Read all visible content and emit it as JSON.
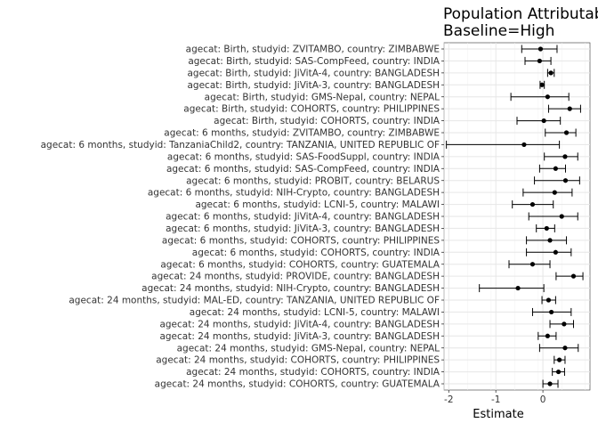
{
  "chart_data": {
    "type": "forest",
    "title_lines": [
      "Population Attributable",
      "Baseline=High"
    ],
    "xlabel": "Estimate",
    "xlim": [
      -2.1,
      1.0
    ],
    "xticks": [
      -2,
      -1,
      0
    ],
    "xtick_labels": [
      "-2",
      "-1",
      "0"
    ],
    "grid": true,
    "rows": [
      {
        "label": "agecat: Birth, studyid: ZVITAMBO, country: ZIMBABWE",
        "estimate": -0.05,
        "lower": -0.45,
        "upper": 0.3
      },
      {
        "label": "agecat: Birth, studyid: SAS-CompFeed, country: INDIA",
        "estimate": -0.07,
        "lower": -0.38,
        "upper": 0.17
      },
      {
        "label": "agecat: Birth, studyid: JiVitA-4, country: BANGLADESH",
        "estimate": 0.17,
        "lower": 0.1,
        "upper": 0.24
      },
      {
        "label": "agecat: Birth, studyid: JiVitA-3, country: BANGLADESH",
        "estimate": -0.02,
        "lower": -0.06,
        "upper": 0.03
      },
      {
        "label": "agecat: Birth, studyid: GMS-Nepal, country: NEPAL",
        "estimate": 0.1,
        "lower": -0.68,
        "upper": 0.55
      },
      {
        "label": "agecat: Birth, studyid: COHORTS, country: PHILIPPINES",
        "estimate": 0.57,
        "lower": 0.12,
        "upper": 0.8
      },
      {
        "label": "agecat: Birth, studyid: COHORTS, country: INDIA",
        "estimate": 0.02,
        "lower": -0.55,
        "upper": 0.37
      },
      {
        "label": "agecat: 6 months, studyid: ZVITAMBO, country: ZIMBABWE",
        "estimate": 0.5,
        "lower": 0.05,
        "upper": 0.7
      },
      {
        "label": "agecat: 6 months, studyid: TanzaniaChild2, country: TANZANIA, UNITED REPUBLIC OF",
        "estimate": -0.4,
        "lower": -2.05,
        "upper": 0.35
      },
      {
        "label": "agecat: 6 months, studyid: SAS-FoodSuppl, country: INDIA",
        "estimate": 0.47,
        "lower": 0.03,
        "upper": 0.74
      },
      {
        "label": "agecat: 6 months, studyid: SAS-CompFeed, country: INDIA",
        "estimate": 0.27,
        "lower": -0.07,
        "upper": 0.48
      },
      {
        "label": "agecat: 6 months, studyid: PROBIT, country: BELARUS",
        "estimate": 0.48,
        "lower": -0.18,
        "upper": 0.78
      },
      {
        "label": "agecat: 6 months, studyid: NIH-Crypto, country: BANGLADESH",
        "estimate": 0.25,
        "lower": -0.42,
        "upper": 0.62
      },
      {
        "label": "agecat: 6 months, studyid: LCNI-5, country: MALAWI",
        "estimate": -0.22,
        "lower": -0.65,
        "upper": 0.22
      },
      {
        "label": "agecat: 6 months, studyid: JiVitA-4, country: BANGLADESH",
        "estimate": 0.4,
        "lower": -0.3,
        "upper": 0.74
      },
      {
        "label": "agecat: 6 months, studyid: JiVitA-3, country: BANGLADESH",
        "estimate": 0.08,
        "lower": -0.14,
        "upper": 0.25
      },
      {
        "label": "agecat: 6 months, studyid: COHORTS, country: PHILIPPINES",
        "estimate": 0.15,
        "lower": -0.35,
        "upper": 0.5
      },
      {
        "label": "agecat: 6 months, studyid: COHORTS, country: INDIA",
        "estimate": 0.27,
        "lower": -0.35,
        "upper": 0.6
      },
      {
        "label": "agecat: 6 months, studyid: COHORTS, country: GUATEMALA",
        "estimate": -0.22,
        "lower": -0.72,
        "upper": 0.15
      },
      {
        "label": "agecat: 24 months, studyid: PROVIDE, country: BANGLADESH",
        "estimate": 0.65,
        "lower": 0.28,
        "upper": 0.85
      },
      {
        "label": "agecat: 24 months, studyid: NIH-Crypto, country: BANGLADESH",
        "estimate": -0.53,
        "lower": -1.35,
        "upper": 0.02
      },
      {
        "label": "agecat: 24 months, studyid: MAL-ED, country: TANZANIA, UNITED REPUBLIC OF",
        "estimate": 0.12,
        "lower": -0.02,
        "upper": 0.27
      },
      {
        "label": "agecat: 24 months, studyid: LCNI-5, country: MALAWI",
        "estimate": 0.18,
        "lower": -0.22,
        "upper": 0.6
      },
      {
        "label": "agecat: 24 months, studyid: JiVitA-4, country: BANGLADESH",
        "estimate": 0.45,
        "lower": 0.15,
        "upper": 0.65
      },
      {
        "label": "agecat: 24 months, studyid: JiVitA-3, country: BANGLADESH",
        "estimate": 0.1,
        "lower": -0.1,
        "upper": 0.28
      },
      {
        "label": "agecat: 24 months, studyid: GMS-Nepal, country: NEPAL",
        "estimate": 0.47,
        "lower": -0.07,
        "upper": 0.75
      },
      {
        "label": "agecat: 24 months, studyid: COHORTS, country: PHILIPPINES",
        "estimate": 0.35,
        "lower": 0.24,
        "upper": 0.47
      },
      {
        "label": "agecat: 24 months, studyid: COHORTS, country: INDIA",
        "estimate": 0.33,
        "lower": 0.2,
        "upper": 0.46
      },
      {
        "label": "agecat: 24 months, studyid: COHORTS, country: GUATEMALA",
        "estimate": 0.15,
        "lower": 0.0,
        "upper": 0.32
      }
    ]
  }
}
